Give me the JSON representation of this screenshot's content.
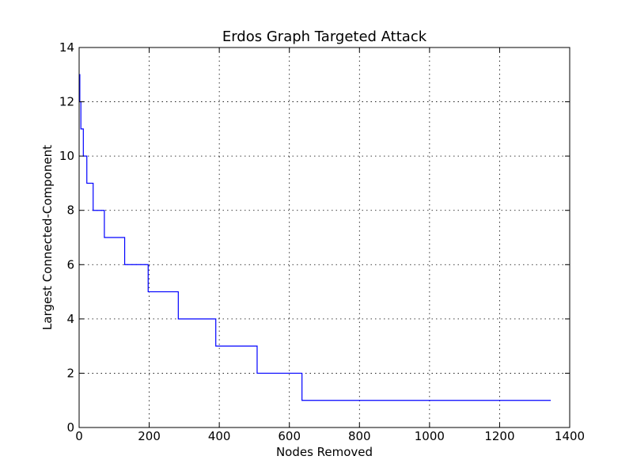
{
  "chart_data": {
    "type": "line",
    "title": "Erdos Graph Targeted Attack",
    "xlabel": "Nodes Removed",
    "ylabel": "Largest Connected-Component",
    "xlim": [
      0,
      1400
    ],
    "ylim": [
      0,
      14
    ],
    "xticks": [
      0,
      200,
      400,
      600,
      800,
      1000,
      1200,
      1400
    ],
    "yticks": [
      0,
      2,
      4,
      6,
      8,
      10,
      12,
      14
    ],
    "xtick_labels": [
      "0",
      "200",
      "400",
      "600",
      "800",
      "1000",
      "1200",
      "1400"
    ],
    "ytick_labels": [
      "0",
      "2",
      "4",
      "6",
      "8",
      "10",
      "12",
      "14"
    ],
    "grid": true,
    "step": "post",
    "series": [
      {
        "color": "#0000ff",
        "x": [
          0,
          2,
          5,
          12,
          22,
          40,
          72,
          130,
          197,
          283,
          390,
          508,
          636,
          1346
        ],
        "y": [
          13,
          12,
          11,
          10,
          9,
          8,
          7,
          6,
          5,
          4,
          3,
          2,
          1,
          1
        ]
      }
    ]
  }
}
